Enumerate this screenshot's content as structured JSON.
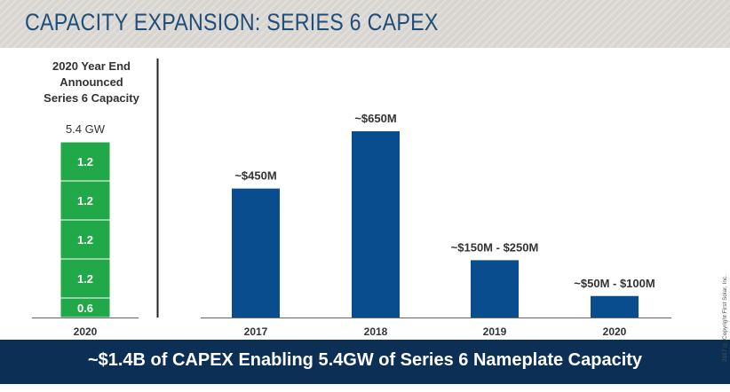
{
  "title": "CAPACITY EXPANSION:  SERIES 6 CAPEX",
  "footer_message": "~$1.4B of CAPEX Enabling 5.4GW of Series 6 Nameplate Capacity",
  "copyright": "2017 © Copyright First Solar, Inc.",
  "colors": {
    "green": "#21a849",
    "navy": "#0b4a8a",
    "bar_blue": "#0a4d8f",
    "footer": "#0b2f55",
    "title": "#1f4e7a"
  },
  "chart_data": [
    {
      "type": "bar",
      "stacked": true,
      "title_lines": [
        "2020 Year End",
        "Announced",
        "Series 6 Capacity"
      ],
      "total_label": "5.4 GW",
      "categories": [
        "2020"
      ],
      "segments": [
        {
          "value": 0.6,
          "label": "0.6"
        },
        {
          "value": 1.2,
          "label": "1.2"
        },
        {
          "value": 1.2,
          "label": "1.2"
        },
        {
          "value": 1.2,
          "label": "1.2"
        },
        {
          "value": 1.2,
          "label": "1.2"
        }
      ],
      "unit": "GW",
      "ylim": [
        0,
        5.4
      ]
    },
    {
      "type": "bar",
      "categories": [
        "2017",
        "2018",
        "2019",
        "2020"
      ],
      "values": [
        450,
        650,
        200,
        75
      ],
      "data_labels": [
        "~$450M",
        "~$650M",
        "~$150M - $250M",
        "~$50M - $100M"
      ],
      "unit": "$M",
      "ylim": [
        0,
        650
      ]
    }
  ]
}
